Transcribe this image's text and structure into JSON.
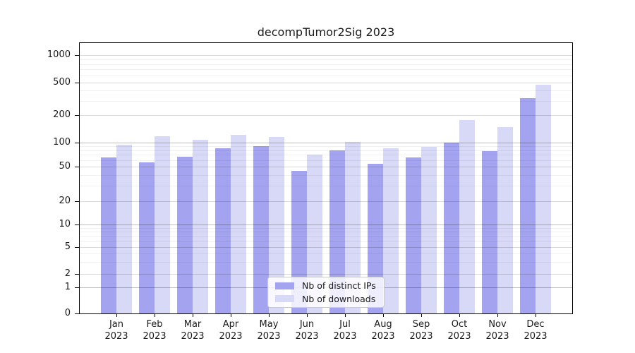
{
  "chart_data": {
    "type": "bar",
    "title": "decompTumor2Sig 2023",
    "categories": [
      "Jan",
      "Feb",
      "Mar",
      "Apr",
      "May",
      "Jun",
      "Jul",
      "Aug",
      "Sep",
      "Oct",
      "Nov",
      "Dec"
    ],
    "year_label": "2023",
    "series": [
      {
        "name": "Nb of distinct IPs",
        "key": "distinct-ips",
        "color": "#a3a3ef",
        "values": [
          65,
          56,
          66,
          85,
          90,
          45,
          80,
          54,
          65,
          100,
          78,
          320
        ]
      },
      {
        "name": "Nb of downloads",
        "key": "downloads",
        "color": "#d8d8f7",
        "values": [
          95,
          118,
          108,
          122,
          115,
          70,
          102,
          85,
          88,
          178,
          148,
          470
        ]
      }
    ],
    "y_scale": "log-like",
    "y_tick_labels": [
      "0",
      "1",
      "2",
      "5",
      "10",
      "20",
      "50",
      "100",
      "200",
      "500",
      "1000"
    ],
    "y_tick_values": [
      0,
      1,
      2,
      5,
      10,
      20,
      50,
      100,
      200,
      500,
      1000
    ],
    "grid": {
      "decade_values": [
        1,
        10,
        100
      ],
      "sub_values": [
        2,
        5,
        20,
        50,
        200,
        500,
        1000
      ],
      "minor_values": [
        3,
        4,
        6,
        7,
        8,
        9,
        30,
        40,
        60,
        70,
        80,
        90,
        300,
        400,
        600,
        700,
        800,
        900
      ]
    },
    "legend_position": "bottom-center",
    "colors": {
      "grid_decade": "rgba(0,0,0,0.26)",
      "grid_sub": "rgba(0,0,0,0.15)",
      "grid_minor": "rgba(0,0,0,0.055)",
      "spine": "#000000",
      "text": "#1a1a1a",
      "background": "#ffffff"
    }
  }
}
